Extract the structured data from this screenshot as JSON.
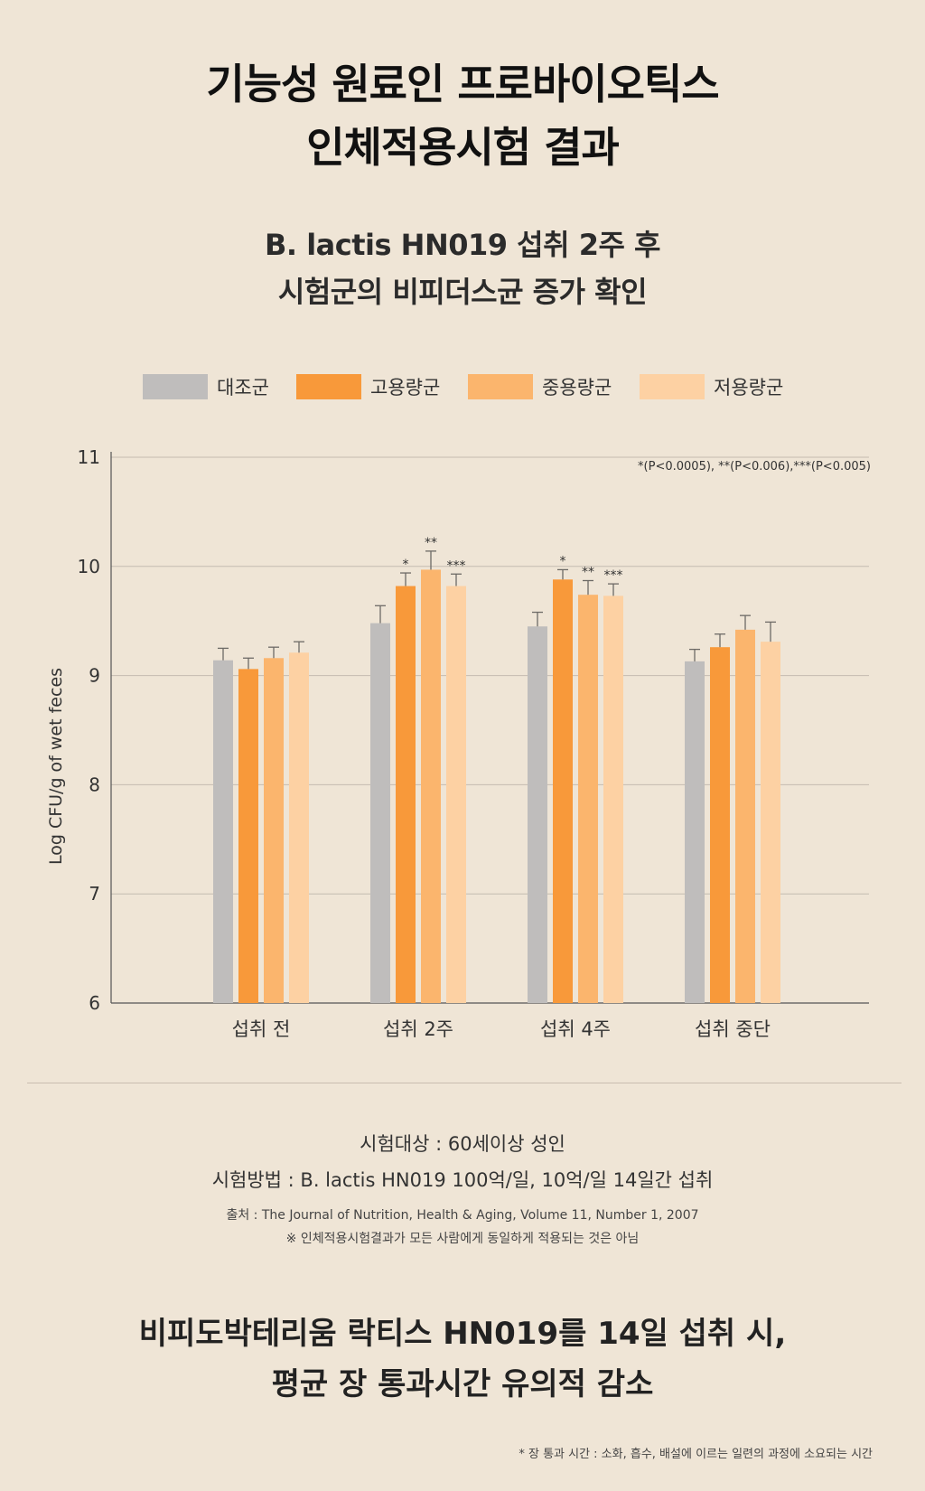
{
  "title_lines": [
    "기능성 원료인 프로바이오틱스",
    "인체적용시험 결과"
  ],
  "subtitle_lines": [
    "B. lactis HN019 섭취 2주 후",
    "시험군의 비피더스균 증가 확인"
  ],
  "colors": {
    "background": "#efe5d6",
    "control": "#bfbdbc",
    "high": "#f8993a",
    "medium": "#fbb56d",
    "low": "#fdd1a3",
    "error_bar": "#6d6a66",
    "grid": "#c4bbb0",
    "axis": "#555555"
  },
  "chart_data": {
    "type": "bar",
    "ylabel": "Log CFU/g of wet feces",
    "xlabel": "",
    "ylim": [
      6,
      11
    ],
    "yticks": [
      6,
      7,
      8,
      9,
      10,
      11
    ],
    "grid": true,
    "legend_position": "top",
    "categories": [
      "섭취 전",
      "섭취 2주",
      "섭취 4주",
      "섭취 중단"
    ],
    "series": [
      {
        "name": "대조군",
        "values": [
          9.14,
          9.48,
          9.45,
          9.13
        ],
        "errors": [
          0.11,
          0.16,
          0.13,
          0.11
        ],
        "marks": [
          "",
          "",
          "",
          ""
        ]
      },
      {
        "name": "고용량군",
        "values": [
          9.06,
          9.82,
          9.88,
          9.26
        ],
        "errors": [
          0.1,
          0.12,
          0.09,
          0.12
        ],
        "marks": [
          "",
          "*",
          "*",
          ""
        ]
      },
      {
        "name": "중용량군",
        "values": [
          9.16,
          9.97,
          9.74,
          9.42
        ],
        "errors": [
          0.1,
          0.17,
          0.13,
          0.13
        ],
        "marks": [
          "",
          "**",
          "**",
          ""
        ]
      },
      {
        "name": "저용량군",
        "values": [
          9.21,
          9.82,
          9.73,
          9.31
        ],
        "errors": [
          0.1,
          0.11,
          0.11,
          0.18
        ],
        "marks": [
          "",
          "***",
          "***",
          ""
        ]
      }
    ],
    "annotation": "*(P<0.0005), **(P<0.006),***(P<0.005)"
  },
  "info": {
    "subject": "시험대상 : 60세이상 성인",
    "method": "시험방법 : B. lactis HN019 100억/일, 10억/일 14일간 섭취",
    "source": "출처 : The Journal of Nutrition, Health & Aging, Volume 11, Number 1, 2007",
    "disclaimer": "※ 인체적용시험결과가 모든 사람에게 동일하게 적용되는 것은 아님"
  },
  "conclusion_lines": [
    "비피도박테리움 락티스 HN019를 14일 섭취 시,",
    "평균 장 통과시간 유의적 감소"
  ],
  "footnote": "* 장 통과 시간 : 소화, 흡수, 배설에 이르는 일련의 과정에 소요되는 시간"
}
